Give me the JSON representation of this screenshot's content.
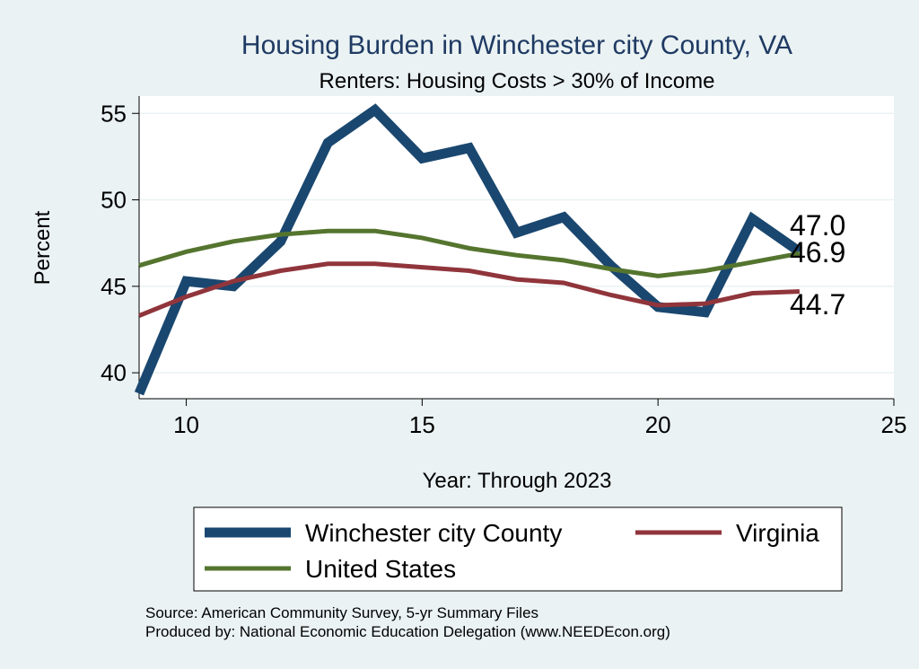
{
  "chart_data": {
    "type": "line",
    "title": "Housing Burden in Winchester city County, VA",
    "subtitle": "Renters: Housing Costs > 30% of Income",
    "xlabel": "Year: Through 2023",
    "ylabel": "Percent",
    "xlim": [
      9,
      25
    ],
    "ylim": [
      38.5,
      56
    ],
    "xticks": [
      10,
      15,
      20,
      25
    ],
    "yticks": [
      40,
      45,
      50,
      55
    ],
    "grid": true,
    "legend_position": "bottom",
    "series": [
      {
        "name": "Winchester city County",
        "color": "#1a476f",
        "x": [
          9,
          10,
          11,
          12,
          13,
          14,
          15,
          16,
          17,
          18,
          19,
          20,
          21,
          22,
          23
        ],
        "values": [
          38.8,
          45.3,
          45.0,
          47.6,
          53.3,
          55.2,
          52.4,
          53.0,
          48.1,
          49.0,
          46.2,
          43.8,
          43.5,
          48.9,
          47.0
        ],
        "end_label": "47.0"
      },
      {
        "name": "Virginia",
        "color": "#90353b",
        "x": [
          9,
          10,
          11,
          12,
          13,
          14,
          15,
          16,
          17,
          18,
          19,
          20,
          21,
          22,
          23
        ],
        "values": [
          43.3,
          44.4,
          45.3,
          45.9,
          46.3,
          46.3,
          46.1,
          45.9,
          45.4,
          45.2,
          44.5,
          43.9,
          44.0,
          44.6,
          44.7
        ],
        "end_label": "44.7"
      },
      {
        "name": "United States",
        "color": "#55752f",
        "x": [
          9,
          10,
          11,
          12,
          13,
          14,
          15,
          16,
          17,
          18,
          19,
          20,
          21,
          22,
          23
        ],
        "values": [
          46.2,
          47.0,
          47.6,
          48.0,
          48.2,
          48.2,
          47.8,
          47.2,
          46.8,
          46.5,
          46.0,
          45.6,
          45.9,
          46.4,
          46.9
        ],
        "end_label": "46.9"
      }
    ],
    "source_lines": [
      "Source: American Community Survey, 5-yr Summary Files",
      "Produced by: National Economic Education Delegation (www.NEEDEcon.org)"
    ]
  }
}
